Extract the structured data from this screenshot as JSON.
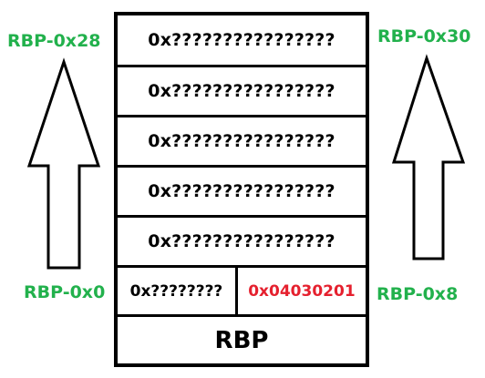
{
  "labels": {
    "top_left": "RBP-0x28",
    "top_right": "RBP-0x30",
    "bottom_left": "RBP-0x0",
    "bottom_right": "RBP-0x8"
  },
  "stack": {
    "rows": [
      "0x????????????????",
      "0x????????????????",
      "0x????????????????",
      "0x????????????????",
      "0x????????????????"
    ],
    "split_left": "0x????????",
    "split_right": "0x04030201",
    "base": "RBP"
  },
  "colors": {
    "label_green": "#22b14c",
    "highlight_red": "#e5202e",
    "border": "#000000"
  },
  "icons": {
    "left_arrow": "up-arrow-icon",
    "right_arrow": "up-arrow-icon"
  }
}
